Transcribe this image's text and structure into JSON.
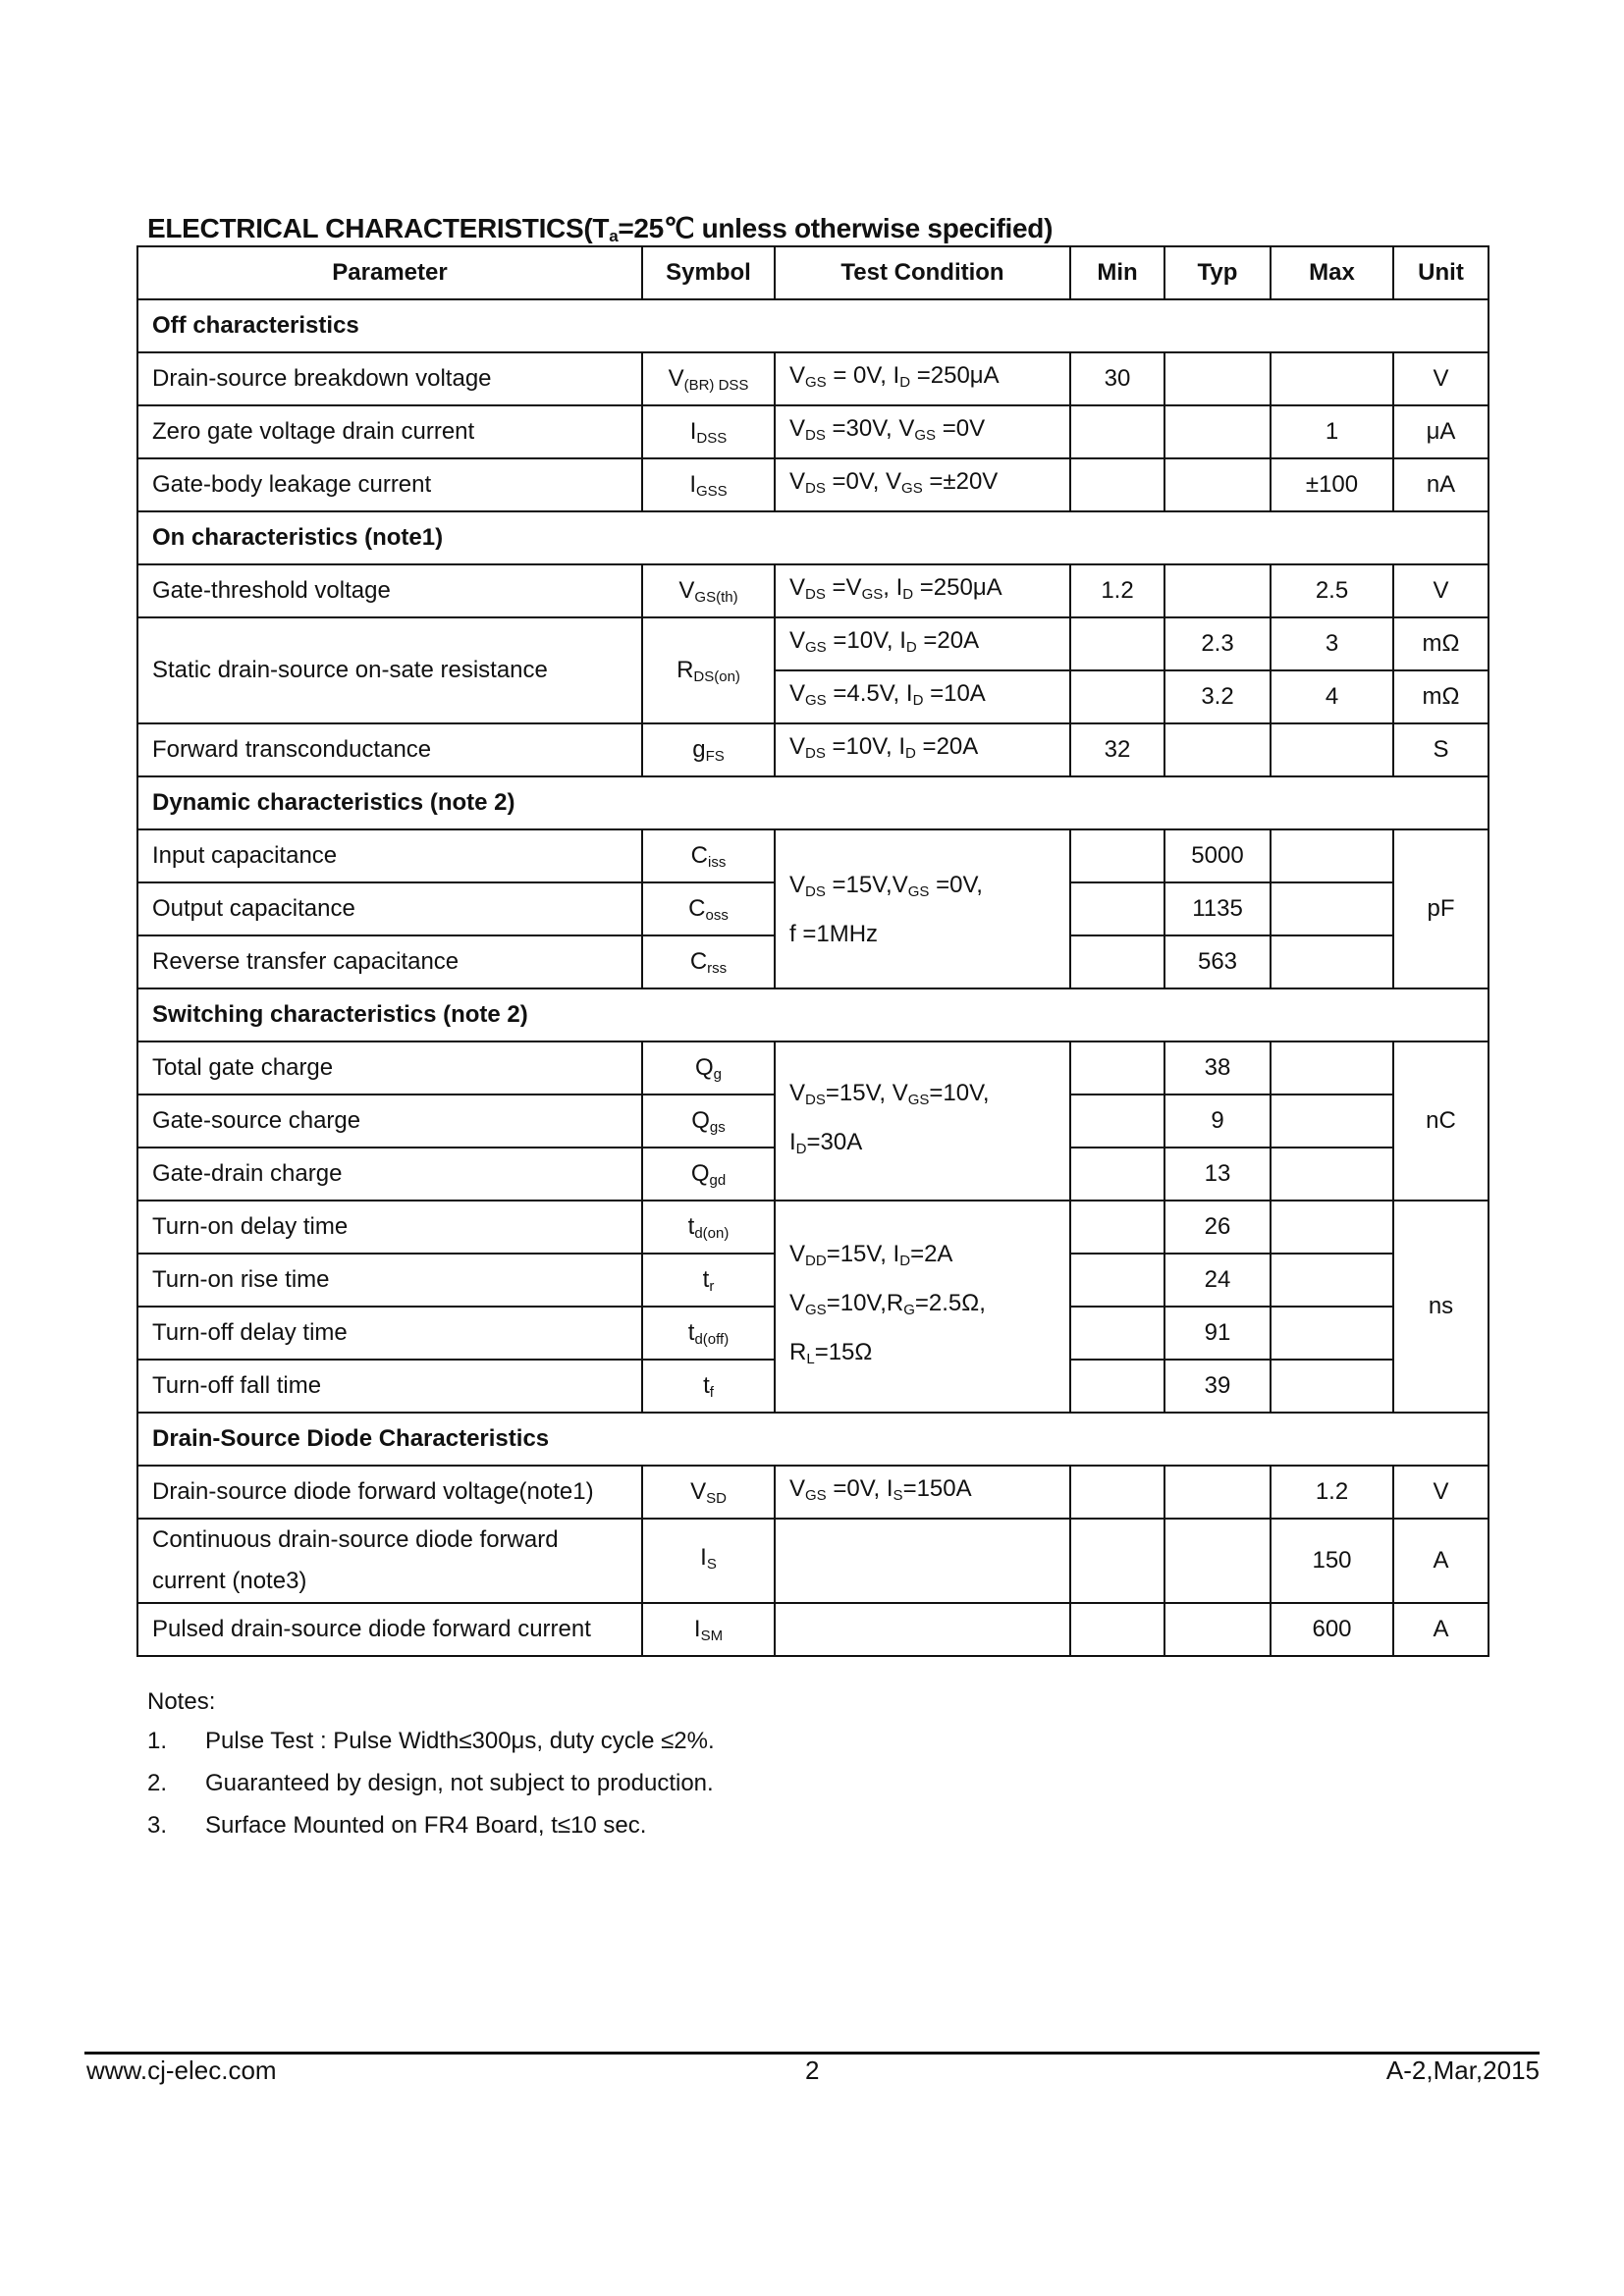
{
  "title": {
    "pre": "ELECTRICAL CHARACTERISTICS(T",
    "sub": "a",
    "post": "=25℃ unless otherwise specified)"
  },
  "headers": [
    "Parameter",
    "Symbol",
    "Test Condition",
    "Min",
    "Typ",
    "Max",
    "Unit"
  ],
  "rows": [
    {
      "section": "Off characteristics"
    },
    {
      "param": "Drain-source breakdown voltage",
      "symbol": [
        "V",
        {
          "sub": "(BR) DSS"
        }
      ],
      "cond": [
        "V",
        {
          "sub": "GS"
        },
        " = 0V, I",
        {
          "sub": "D"
        },
        " =250μA"
      ],
      "min": "30",
      "typ": "",
      "max": "",
      "unit": "V"
    },
    {
      "param": "Zero gate voltage drain current",
      "symbol": [
        "I",
        {
          "sub": "DSS"
        }
      ],
      "cond": [
        "V",
        {
          "sub": "DS"
        },
        " =30V, V",
        {
          "sub": "GS"
        },
        " =0V"
      ],
      "min": "",
      "typ": "",
      "max": "1",
      "unit": "μA"
    },
    {
      "param": "Gate-body leakage current",
      "symbol": [
        "I",
        {
          "sub": "GSS"
        }
      ],
      "cond": [
        "V",
        {
          "sub": "DS"
        },
        " =0V, V",
        {
          "sub": "GS"
        },
        " =±20V"
      ],
      "min": "",
      "typ": "",
      "max": "±100",
      "unit": "nA"
    },
    {
      "section": "On characteristics (note1)"
    },
    {
      "param": "Gate-threshold voltage",
      "symbol": [
        "V",
        {
          "sub": "GS(th)"
        }
      ],
      "cond": [
        "V",
        {
          "sub": "DS"
        },
        " =V",
        {
          "sub": "GS"
        },
        ", I",
        {
          "sub": "D"
        },
        " =250μA"
      ],
      "min": "1.2",
      "typ": "",
      "max": "2.5",
      "unit": "V"
    },
    {
      "param": "Static drain-source on-sate resistance",
      "symbol": [
        "R",
        {
          "sub": "DS(on)"
        }
      ],
      "cond": [
        "V",
        {
          "sub": "GS"
        },
        " =10V, I",
        {
          "sub": "D"
        },
        " =20A"
      ],
      "min": "",
      "typ": "2.3",
      "max": "3",
      "unit": "mΩ"
    },
    {
      "cond": [
        "V",
        {
          "sub": "GS"
        },
        " =4.5V, I",
        {
          "sub": "D"
        },
        " =10A"
      ],
      "min": "",
      "typ": "3.2",
      "max": "4",
      "unit": "mΩ"
    },
    {
      "param": "Forward transconductance",
      "symbol": [
        "g",
        {
          "sub": "FS"
        }
      ],
      "cond": [
        "V",
        {
          "sub": "DS"
        },
        " =10V, I",
        {
          "sub": "D"
        },
        " =20A"
      ],
      "min": "32",
      "typ": "",
      "max": "",
      "unit": "S"
    },
    {
      "section": "Dynamic characteristics (note 2)"
    },
    {
      "param": "Input capacitance",
      "symbol": [
        "C",
        {
          "sub": "iss"
        }
      ],
      "cond": [
        "V",
        {
          "sub": "DS"
        },
        " =15V,V",
        {
          "sub": "GS"
        },
        " =0V,",
        {
          "br": 1
        },
        "f =1MHz"
      ],
      "min": "",
      "typ": "5000",
      "max": "",
      "unit": "pF"
    },
    {
      "param": "Output capacitance",
      "symbol": [
        "C",
        {
          "sub": "oss"
        }
      ],
      "min": "",
      "typ": "1135",
      "max": ""
    },
    {
      "param": "Reverse transfer capacitance",
      "symbol": [
        "C",
        {
          "sub": "rss"
        }
      ],
      "min": "",
      "typ": "563",
      "max": ""
    },
    {
      "section": "Switching characteristics (note 2)"
    },
    {
      "param": "Total gate charge",
      "symbol": [
        "Q",
        {
          "sub": "g"
        }
      ],
      "cond": [
        "V",
        {
          "sub": "DS"
        },
        "=15V, V",
        {
          "sub": "GS"
        },
        "=10V,",
        {
          "br": 1
        },
        "I",
        {
          "sub": "D"
        },
        "=30A"
      ],
      "min": "",
      "typ": "38",
      "max": "",
      "unit": "nC"
    },
    {
      "param": "Gate-source charge",
      "symbol": [
        "Q",
        {
          "sub": "gs"
        }
      ],
      "min": "",
      "typ": "9",
      "max": ""
    },
    {
      "param": "Gate-drain charge",
      "symbol": [
        "Q",
        {
          "sub": "gd"
        }
      ],
      "min": "",
      "typ": "13",
      "max": ""
    },
    {
      "param": "Turn-on delay time",
      "symbol": [
        "t",
        {
          "sub": "d(on)"
        }
      ],
      "cond": [
        "V",
        {
          "sub": "DD"
        },
        "=15V, I",
        {
          "sub": "D"
        },
        "=2A",
        {
          "br": 1
        },
        "V",
        {
          "sub": "GS"
        },
        "=10V,R",
        {
          "sub": "G"
        },
        "=2.5Ω,",
        {
          "br": 1
        },
        "R",
        {
          "sub": "L"
        },
        "=15Ω"
      ],
      "min": "",
      "typ": "26",
      "max": "",
      "unit": "ns"
    },
    {
      "param": "Turn-on rise time",
      "symbol": [
        "t",
        {
          "sub": "r"
        }
      ],
      "min": "",
      "typ": "24",
      "max": ""
    },
    {
      "param": "Turn-off delay time",
      "symbol": [
        "t",
        {
          "sub": "d(off)"
        }
      ],
      "min": "",
      "typ": "91",
      "max": ""
    },
    {
      "param": "Turn-off fall time",
      "symbol": [
        "t",
        {
          "sub": "f"
        }
      ],
      "min": "",
      "typ": "39",
      "max": ""
    },
    {
      "section": "Drain-Source Diode Characteristics"
    },
    {
      "param": "Drain-source diode forward voltage(note1)",
      "symbol": [
        "V",
        {
          "sub": "SD"
        }
      ],
      "cond": [
        "V",
        {
          "sub": "GS"
        },
        " =0V, I",
        {
          "sub": "S"
        },
        "=150A"
      ],
      "min": "",
      "typ": "",
      "max": "1.2",
      "unit": "V"
    },
    {
      "param": "Continuous drain-source diode forward current (note3)",
      "symbol": [
        "I",
        {
          "sub": "S"
        }
      ],
      "cond": [],
      "min": "",
      "typ": "",
      "max": "150",
      "unit": "A",
      "tall": true
    },
    {
      "param": "Pulsed drain-source diode forward current",
      "symbol": [
        "I",
        {
          "sub": "SM"
        }
      ],
      "cond": [],
      "min": "",
      "typ": "",
      "max": "600",
      "unit": "A"
    }
  ],
  "notes": {
    "heading": "Notes:",
    "items": [
      {
        "num": "1.",
        "text": "Pulse Test : Pulse Width≤300μs, duty cycle ≤2%."
      },
      {
        "num": "2.",
        "text": "Guaranteed by design, not subject to production."
      },
      {
        "num": "3.",
        "text": "Surface Mounted on FR4 Board, t≤10 sec."
      }
    ]
  },
  "footer": {
    "website": "www.cj-elec.com",
    "page": "2",
    "revision": "A-2,Mar,2015"
  }
}
